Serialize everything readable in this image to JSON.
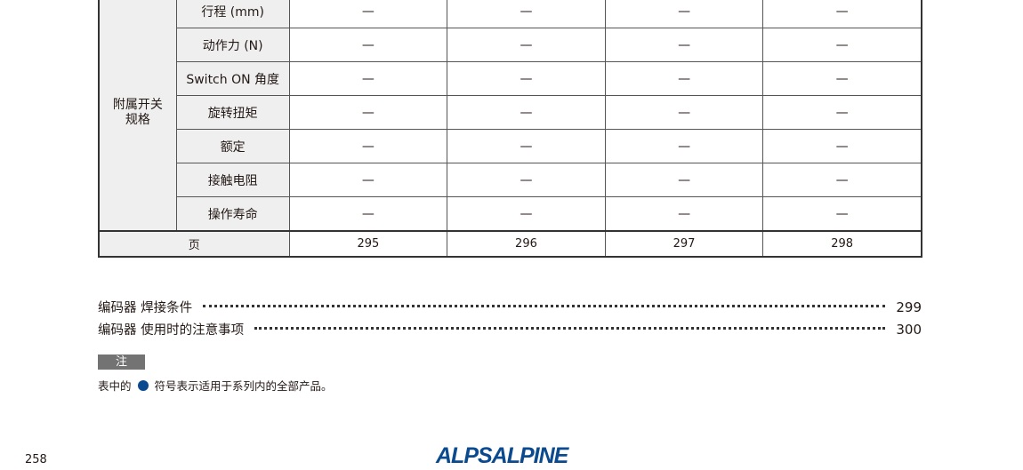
{
  "table": {
    "group_label": "附属开关\n规格",
    "rows": [
      {
        "label": "行程 (mm)",
        "values": [
          "—",
          "—",
          "—",
          "—"
        ]
      },
      {
        "label": "动作力 (N)",
        "values": [
          "—",
          "—",
          "—",
          "—"
        ]
      },
      {
        "label": "Switch ON 角度",
        "values": [
          "—",
          "—",
          "—",
          "—"
        ]
      },
      {
        "label": "旋转扭矩",
        "values": [
          "—",
          "—",
          "—",
          "—"
        ]
      },
      {
        "label": "额定",
        "values": [
          "—",
          "—",
          "—",
          "—"
        ]
      },
      {
        "label": "接触电阻",
        "values": [
          "—",
          "—",
          "—",
          "—"
        ]
      },
      {
        "label": "操作寿命",
        "values": [
          "—",
          "—",
          "—",
          "—"
        ]
      }
    ],
    "page_row": {
      "label": "页",
      "values": [
        "295",
        "296",
        "297",
        "298"
      ]
    }
  },
  "toc": [
    {
      "title": "编码器 焊接条件",
      "page": "299"
    },
    {
      "title": "编码器 使用时的注意事项",
      "page": "300"
    }
  ],
  "note": {
    "label": "注",
    "text_before": "表中的",
    "text_after": "符号表示适用于系列内的全部产品。",
    "symbol_color": "#0b4a8f"
  },
  "page_number": "258",
  "logo": "ALPSALPINE"
}
